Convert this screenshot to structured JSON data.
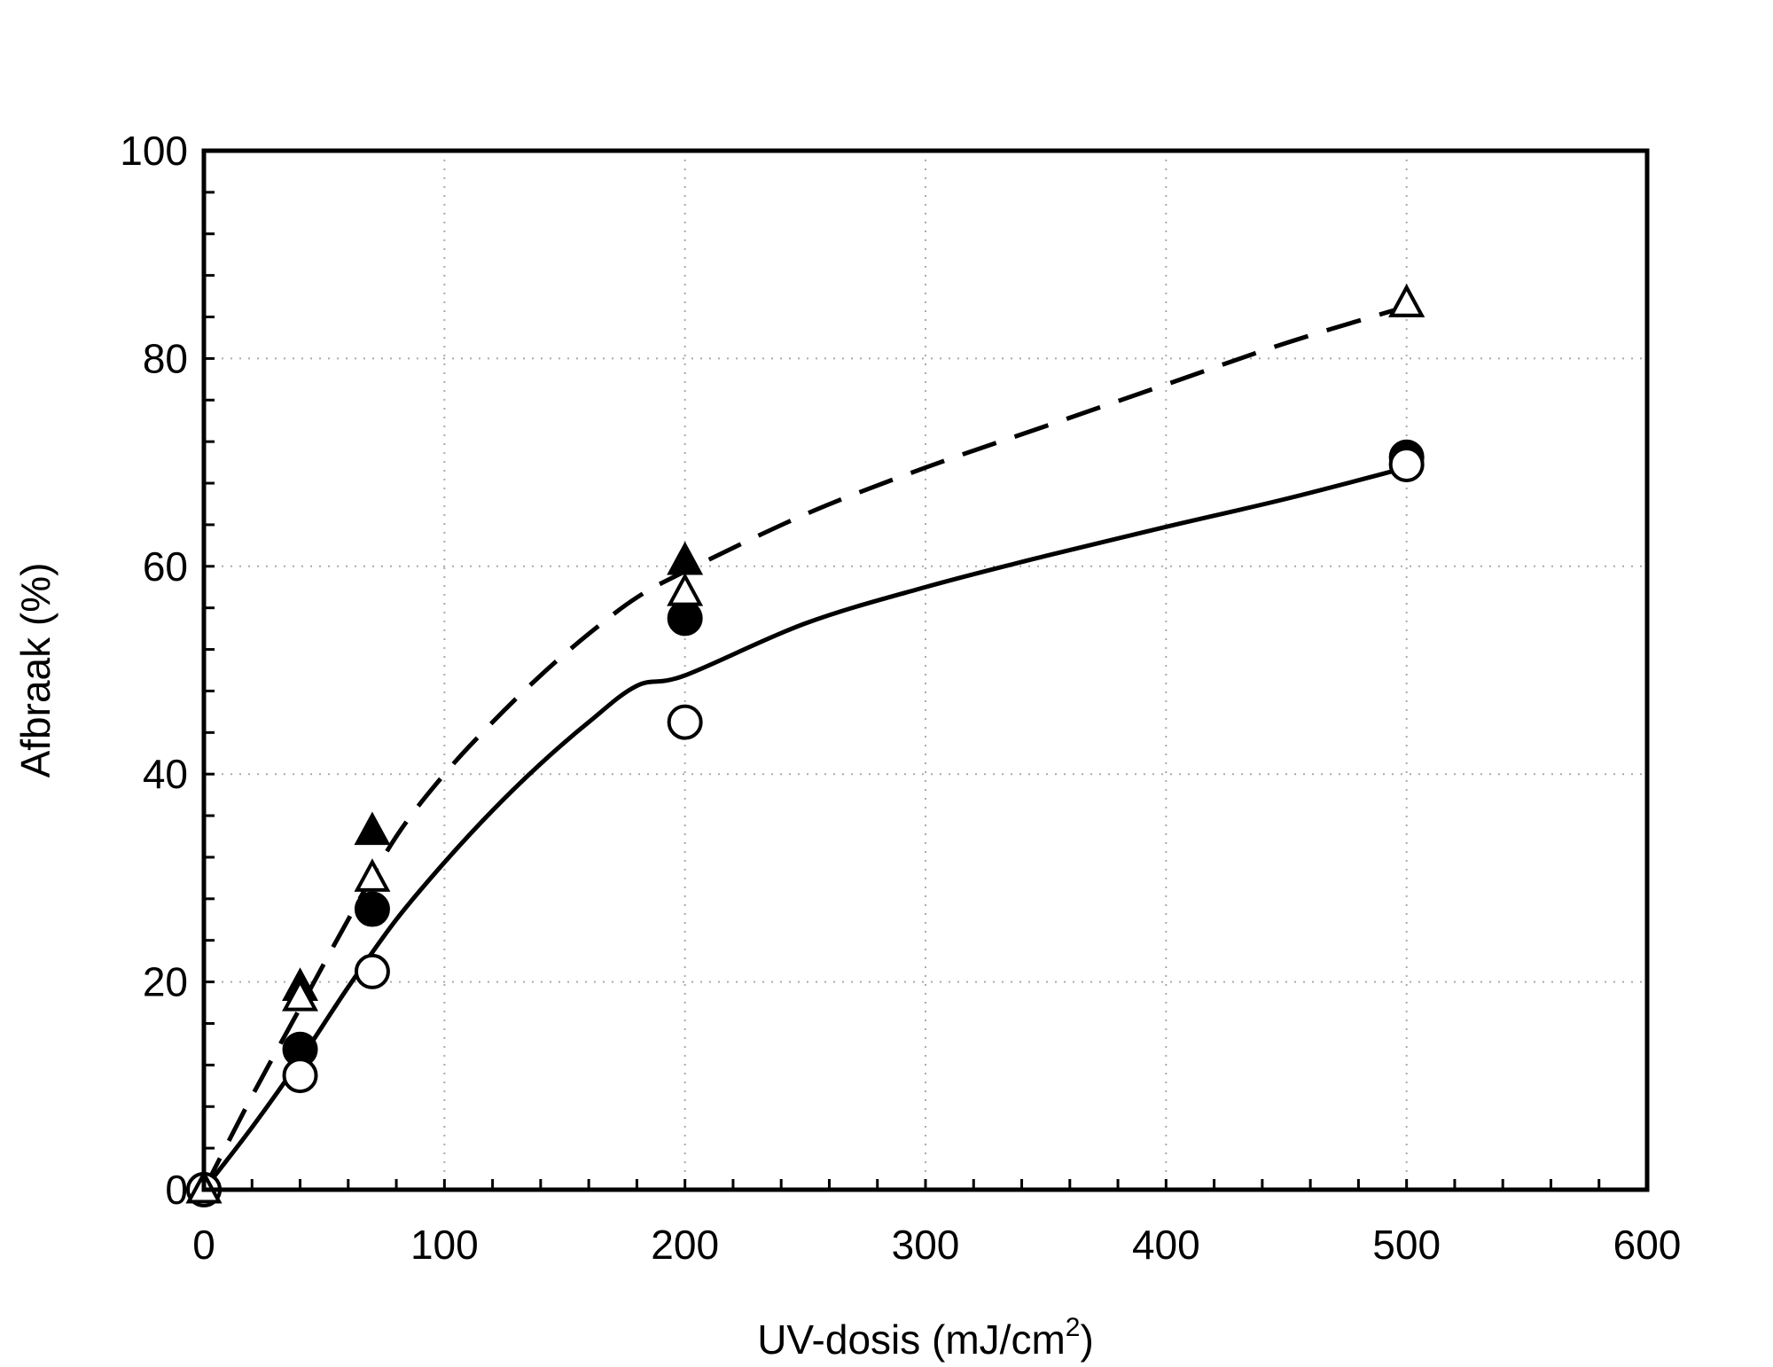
{
  "chart_data": {
    "type": "scatter",
    "title": "",
    "xlabel": "UV-dosis (mJ/cm",
    "xlabel_sup": "2",
    "xlabel_close": ")",
    "ylabel": "Afbraak (%)",
    "xlim": [
      0,
      600
    ],
    "ylim": [
      0,
      100
    ],
    "xticks": [
      0,
      100,
      200,
      300,
      400,
      500,
      600
    ],
    "yticks": [
      0,
      20,
      40,
      60,
      80,
      100
    ],
    "xtick_labels": [
      "0",
      "100",
      "200",
      "300",
      "400",
      "500",
      "600"
    ],
    "ytick_labels": [
      "0",
      "20",
      "40",
      "60",
      "80",
      "100"
    ],
    "grid": true,
    "legend": "none",
    "series": [
      {
        "marker": "circle-filled",
        "x": [
          0,
          40,
          70,
          200,
          500
        ],
        "y": [
          0,
          13.5,
          27,
          55,
          70.5
        ]
      },
      {
        "marker": "circle-open",
        "x": [
          0,
          40,
          70,
          200,
          500
        ],
        "y": [
          0,
          11,
          21,
          45,
          69.8
        ]
      },
      {
        "marker": "triangle-filled",
        "x": [
          0,
          40,
          70,
          200,
          500
        ],
        "y": [
          0,
          19.5,
          34.5,
          60.5,
          85.3
        ]
      },
      {
        "marker": "triangle-open",
        "x": [
          0,
          40,
          70,
          200,
          500
        ],
        "y": [
          0,
          18.5,
          30,
          57.5,
          85.3
        ]
      }
    ],
    "fits": [
      {
        "style": "solid",
        "x": [
          0,
          20,
          40,
          60,
          80,
          100,
          120,
          140,
          160,
          180,
          200,
          250,
          300,
          350,
          400,
          450,
          500
        ],
        "y": [
          0,
          6,
          12.5,
          19.5,
          26,
          31.5,
          36.5,
          41,
          45,
          48.5,
          49.5,
          54.5,
          58,
          61,
          63.8,
          66.5,
          69.5
        ]
      },
      {
        "style": "dashed",
        "x": [
          0,
          20,
          40,
          60,
          80,
          100,
          120,
          140,
          160,
          180,
          200,
          250,
          300,
          350,
          400,
          450,
          500
        ],
        "y": [
          0,
          9,
          17.5,
          26,
          34,
          40,
          45,
          49.5,
          53.5,
          57,
          59.5,
          65,
          69.5,
          73.5,
          77.5,
          81.5,
          85
        ]
      }
    ]
  }
}
